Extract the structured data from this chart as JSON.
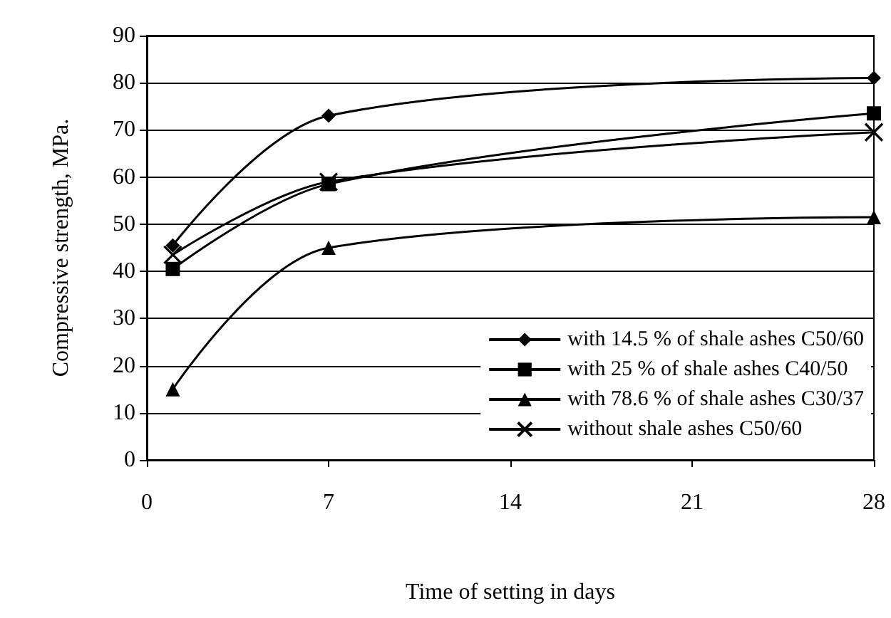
{
  "chart_data": {
    "type": "line",
    "xlabel": "Time of setting in days",
    "ylabel": "Compressive strength, MPa.",
    "x": [
      1,
      7,
      28
    ],
    "series": [
      {
        "name": "with 14.5 % of shale ashes C50/60",
        "color": "#000000",
        "marker": "diamond",
        "values": [
          45.5,
          73,
          81
        ]
      },
      {
        "name": "with 25 % of shale ashes C40/50",
        "color": "#000000",
        "marker": "square",
        "values": [
          40.5,
          58.5,
          73.5
        ]
      },
      {
        "name": "with 78.6 % of shale ashes C30/37",
        "color": "#000000",
        "marker": "triangle",
        "values": [
          15,
          45,
          51.5
        ]
      },
      {
        "name": "without shale ashes C50/60",
        "color": "#000000",
        "marker": "cross",
        "values": [
          43.5,
          59,
          69.5
        ]
      }
    ],
    "xlim": [
      0,
      28
    ],
    "xticks": [
      0,
      7,
      14,
      21,
      28
    ],
    "ylim": [
      0,
      90
    ],
    "yticks": [
      0,
      10,
      20,
      30,
      40,
      50,
      60,
      70,
      80,
      90
    ],
    "grid": "y",
    "legend": "bottom right",
    "line_style": "solid"
  }
}
